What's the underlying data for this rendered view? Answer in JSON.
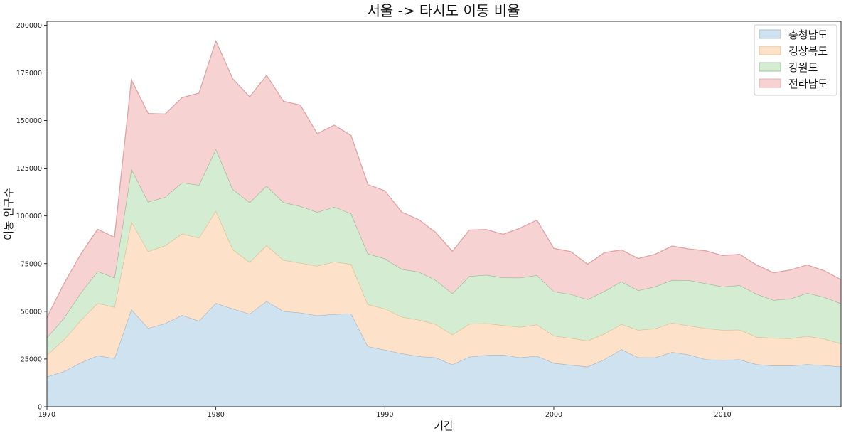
{
  "chart_data": {
    "type": "area",
    "stacked": true,
    "title": "서울 -> 타시도 이동 비율",
    "xlabel": "기간",
    "ylabel": "이동 인구수",
    "xlim": [
      1970,
      2017
    ],
    "ylim": [
      0,
      202000
    ],
    "x_ticks": [
      1970,
      1980,
      1990,
      2000,
      2010
    ],
    "y_ticks": [
      0,
      25000,
      50000,
      75000,
      100000,
      125000,
      150000,
      175000,
      200000
    ],
    "legend_position": "top-right",
    "grid": false,
    "x": [
      1970,
      1971,
      1972,
      1973,
      1974,
      1975,
      1976,
      1977,
      1978,
      1979,
      1980,
      1981,
      1982,
      1983,
      1984,
      1985,
      1986,
      1987,
      1988,
      1989,
      1990,
      1991,
      1992,
      1993,
      1994,
      1995,
      1996,
      1997,
      1998,
      1999,
      2000,
      2001,
      2002,
      2003,
      2004,
      2005,
      2006,
      2007,
      2008,
      2009,
      2010,
      2011,
      2012,
      2013,
      2014,
      2015,
      2016,
      2017
    ],
    "series": [
      {
        "name": "충청남도",
        "fill": "#cfe2f0",
        "line": "#a6b4c0",
        "values": [
          15700,
          18500,
          23100,
          26800,
          25400,
          51000,
          41200,
          43700,
          48000,
          45000,
          54300,
          51400,
          48700,
          55300,
          50100,
          49300,
          47800,
          48500,
          48800,
          31600,
          29800,
          27900,
          26400,
          25800,
          22100,
          26200,
          27000,
          27200,
          25800,
          26600,
          22900,
          21900,
          21000,
          24800,
          30100,
          25800,
          25800,
          28600,
          27300,
          24800,
          24400,
          24800,
          22200,
          21500,
          21500,
          22200,
          21700,
          21000
        ]
      },
      {
        "name": "경상북도",
        "fill": "#fde1c9",
        "line": "#dcbf8c",
        "values": [
          11500,
          16600,
          22200,
          27500,
          26800,
          46000,
          40200,
          40800,
          42700,
          43500,
          48400,
          31000,
          27100,
          29300,
          26800,
          26100,
          26000,
          27500,
          26000,
          22000,
          21600,
          19200,
          19200,
          17500,
          15700,
          17200,
          16700,
          15500,
          16000,
          16500,
          14300,
          14100,
          13600,
          13500,
          13200,
          14400,
          15200,
          15400,
          15200,
          16300,
          15800,
          15600,
          14400,
          14500,
          14300,
          14800,
          13900,
          12100
        ]
      },
      {
        "name": "강원도",
        "fill": "#d4ecd2",
        "line": "#9cb592",
        "values": [
          9000,
          11300,
          14300,
          16700,
          15400,
          27600,
          26000,
          25400,
          26800,
          27700,
          32400,
          31600,
          31300,
          31200,
          30200,
          29700,
          28200,
          28700,
          26500,
          26600,
          26300,
          25000,
          25100,
          23100,
          21600,
          25000,
          25400,
          25000,
          25800,
          25800,
          23200,
          23000,
          21700,
          22300,
          22300,
          20800,
          22000,
          22400,
          23800,
          23500,
          22700,
          23300,
          22500,
          19900,
          20800,
          22600,
          21900,
          21000
        ]
      },
      {
        "name": "전라남도",
        "fill": "#f6d2d3",
        "line": "#e0a3a3",
        "values": [
          10500,
          18000,
          20300,
          22000,
          21200,
          46700,
          46300,
          43500,
          44500,
          48200,
          56600,
          57900,
          55300,
          57900,
          53000,
          53000,
          41100,
          42900,
          40900,
          36200,
          35500,
          29900,
          27400,
          25000,
          22000,
          24200,
          23800,
          22700,
          26000,
          28900,
          22600,
          22300,
          18400,
          20200,
          16600,
          16700,
          16900,
          17800,
          16400,
          17100,
          16300,
          16200,
          15200,
          14300,
          15100,
          14700,
          13800,
          12500
        ]
      }
    ]
  }
}
